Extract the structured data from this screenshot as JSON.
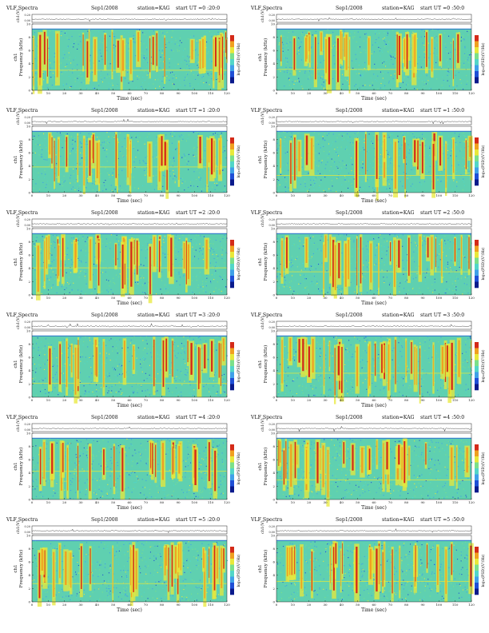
{
  "chart_data": [
    {
      "type": "heatmap",
      "title": "VLF Spectra",
      "date": "Sep1/2008",
      "station": "station=KAG",
      "start": "start  UT  =0 :20:0",
      "xlabel": "Time  (sec)",
      "ylabel": "Frequency  (kHz)",
      "ch_label": "ch1",
      "trace_label": "ch1(V)",
      "colorbar_label": "log₁₀(PSD)(V²/Hz)",
      "xlim": [
        0,
        120
      ],
      "ylim": [
        0,
        10
      ],
      "x_ticks": [
        "0",
        "10",
        "20",
        "30",
        "40",
        "50",
        "60",
        "70",
        "80",
        "90",
        "100",
        "110",
        "120"
      ],
      "y_ticks": [
        "0",
        "2",
        "4",
        "6",
        "8",
        "10"
      ],
      "trace_ticks": [
        "0.00",
        "0.20"
      ]
    },
    {
      "type": "heatmap",
      "title": "VLF Spectra",
      "date": "Sep1/2008",
      "station": "station=KAG",
      "start": "start  UT  =0 :50:0",
      "xlabel": "Time  (sec)",
      "ylabel": "Frequency  (kHz)",
      "ch_label": "ch1",
      "trace_label": "ch1(V)",
      "colorbar_label": "log₁₀(PSD)(V²/Hz)",
      "xlim": [
        0,
        120
      ],
      "ylim": [
        0,
        10
      ],
      "x_ticks": [
        "0",
        "10",
        "20",
        "30",
        "40",
        "50",
        "60",
        "70",
        "80",
        "90",
        "100",
        "110",
        "120"
      ],
      "y_ticks": [
        "0",
        "2",
        "4",
        "6",
        "8",
        "10"
      ],
      "trace_ticks": [
        "0.00",
        "0.20"
      ]
    },
    {
      "type": "heatmap",
      "title": "VLF Spectra",
      "date": "Sep1/2008",
      "station": "station=KAG",
      "start": "start  UT  =1 :20:0",
      "xlabel": "Time  (sec)",
      "ylabel": "Frequency  (kHz)",
      "ch_label": "ch1",
      "trace_label": "ch1(V)",
      "colorbar_label": "log₁₀(PSD)(V²/Hz)",
      "xlim": [
        0,
        120
      ],
      "ylim": [
        0,
        10
      ],
      "x_ticks": [
        "0",
        "10",
        "20",
        "30",
        "40",
        "50",
        "60",
        "70",
        "80",
        "90",
        "100",
        "110",
        "120"
      ],
      "y_ticks": [
        "0",
        "2",
        "4",
        "6",
        "8",
        "10"
      ],
      "trace_ticks": [
        "0.00",
        "0.20"
      ]
    },
    {
      "type": "heatmap",
      "title": "VLF Spectra",
      "date": "Sep1/2008",
      "station": "station=KAG",
      "start": "start  UT  =1 :50:0",
      "xlabel": "Time  (sec)",
      "ylabel": "Frequency  (kHz)",
      "ch_label": "ch1",
      "trace_label": "ch1(V)",
      "colorbar_label": "log₁₀(PSD)(V²/Hz)",
      "xlim": [
        0,
        120
      ],
      "ylim": [
        0,
        10
      ],
      "x_ticks": [
        "0",
        "10",
        "20",
        "30",
        "40",
        "50",
        "60",
        "70",
        "80",
        "90",
        "100",
        "110",
        "120"
      ],
      "y_ticks": [
        "0",
        "2",
        "4",
        "6",
        "8",
        "10"
      ],
      "trace_ticks": [
        "0.00",
        "0.20"
      ]
    },
    {
      "type": "heatmap",
      "title": "VLF Spectra",
      "date": "Sep1/2008",
      "station": "station=KAG",
      "start": "start  UT  =2 :20:0",
      "xlabel": "Time  (sec)",
      "ylabel": "Frequency  (kHz)",
      "ch_label": "ch1",
      "trace_label": "ch1(V)",
      "colorbar_label": "log₁₀(PSD)(V²/Hz)",
      "xlim": [
        0,
        120
      ],
      "ylim": [
        0,
        10
      ],
      "x_ticks": [
        "0",
        "10",
        "20",
        "30",
        "40",
        "50",
        "60",
        "70",
        "80",
        "90",
        "100",
        "110",
        "120"
      ],
      "y_ticks": [
        "0",
        "2",
        "4",
        "6",
        "8",
        "10"
      ],
      "trace_ticks": [
        "0.00",
        "0.20"
      ]
    },
    {
      "type": "heatmap",
      "title": "VLF Spectra",
      "date": "Sep1/2008",
      "station": "station=KAG",
      "start": "start  UT  =2 :50:0",
      "xlabel": "Time  (sec)",
      "ylabel": "Frequency  (kHz)",
      "ch_label": "ch1",
      "trace_label": "ch1(V)",
      "colorbar_label": "log₁₀(PSD)(V²/Hz)",
      "xlim": [
        0,
        120
      ],
      "ylim": [
        0,
        10
      ],
      "x_ticks": [
        "0",
        "10",
        "20",
        "30",
        "40",
        "50",
        "60",
        "70",
        "80",
        "90",
        "100",
        "110",
        "120"
      ],
      "y_ticks": [
        "0",
        "2",
        "4",
        "6",
        "8",
        "10"
      ],
      "trace_ticks": [
        "0.00",
        "0.20"
      ]
    },
    {
      "type": "heatmap",
      "title": "VLF Spectra",
      "date": "Sep1/2008",
      "station": "station=KAG",
      "start": "start  UT  =3 :20:0",
      "xlabel": "Time  (sec)",
      "ylabel": "Frequency  (kHz)",
      "ch_label": "ch1",
      "trace_label": "ch1(V)",
      "colorbar_label": "log₁₀(PSD)(V²/Hz)",
      "xlim": [
        0,
        120
      ],
      "ylim": [
        0,
        10
      ],
      "x_ticks": [
        "0",
        "10",
        "20",
        "30",
        "40",
        "50",
        "60",
        "70",
        "80",
        "90",
        "100",
        "110",
        "120"
      ],
      "y_ticks": [
        "0",
        "2",
        "4",
        "6",
        "8",
        "10"
      ],
      "trace_ticks": [
        "0.00",
        "0.20"
      ]
    },
    {
      "type": "heatmap",
      "title": "VLF Spectra",
      "date": "Sep1/2008",
      "station": "station=KAG",
      "start": "start  UT  =3 :50:0",
      "xlabel": "Time  (sec)",
      "ylabel": "Frequency  (kHz)",
      "ch_label": "ch1",
      "trace_label": "ch1(V)",
      "colorbar_label": "log₁₀(PSD)(V²/Hz)",
      "xlim": [
        0,
        120
      ],
      "ylim": [
        0,
        10
      ],
      "x_ticks": [
        "0",
        "10",
        "20",
        "30",
        "40",
        "50",
        "60",
        "70",
        "80",
        "90",
        "100",
        "110",
        "120"
      ],
      "y_ticks": [
        "0",
        "2",
        "4",
        "6",
        "8",
        "10"
      ],
      "trace_ticks": [
        "0.00",
        "0.20"
      ]
    },
    {
      "type": "heatmap",
      "title": "VLF Spectra",
      "date": "Sep1/2008",
      "station": "station=KAG",
      "start": "start  UT  =4 :20:0",
      "xlabel": "Time  (sec)",
      "ylabel": "Frequency  (kHz)",
      "ch_label": "ch1",
      "trace_label": "ch1(V)",
      "colorbar_label": "log₁₀(PSD)(V²/Hz)",
      "xlim": [
        0,
        120
      ],
      "ylim": [
        0,
        10
      ],
      "x_ticks": [
        "0",
        "10",
        "20",
        "30",
        "40",
        "50",
        "60",
        "70",
        "80",
        "90",
        "100",
        "110",
        "120"
      ],
      "y_ticks": [
        "0",
        "2",
        "4",
        "6",
        "8",
        "10"
      ],
      "trace_ticks": [
        "0.00",
        "0.20"
      ]
    },
    {
      "type": "heatmap",
      "title": "VLF Spectra",
      "date": "Sep1/2008",
      "station": "station=KAG",
      "start": "start  UT  =4 :50:0",
      "xlabel": "Time  (sec)",
      "ylabel": "Frequency  (kHz)",
      "ch_label": "ch1",
      "trace_label": "ch1(V)",
      "colorbar_label": "log₁₀(PSD)(V²/Hz)",
      "xlim": [
        0,
        120
      ],
      "ylim": [
        0,
        10
      ],
      "x_ticks": [
        "0",
        "10",
        "20",
        "30",
        "40",
        "50",
        "60",
        "70",
        "80",
        "90",
        "100",
        "110",
        "120"
      ],
      "y_ticks": [
        "0",
        "2",
        "4",
        "6",
        "8",
        "10"
      ],
      "trace_ticks": [
        "0.00",
        "0.20"
      ]
    },
    {
      "type": "heatmap",
      "title": "VLF Spectra",
      "date": "Sep1/2008",
      "station": "station=KAG",
      "start": "start  UT  =5 :20:0",
      "xlabel": "Time  (sec)",
      "ylabel": "Frequency  (kHz)",
      "ch_label": "ch1",
      "trace_label": "ch1(V)",
      "colorbar_label": "log₁₀(PSD)(V²/Hz)",
      "xlim": [
        0,
        120
      ],
      "ylim": [
        0,
        10
      ],
      "x_ticks": [
        "0",
        "10",
        "20",
        "30",
        "40",
        "50",
        "60",
        "70",
        "80",
        "90",
        "100",
        "110",
        "120"
      ],
      "y_ticks": [
        "0",
        "2",
        "4",
        "6",
        "8",
        "10"
      ],
      "trace_ticks": [
        "0.00",
        "0.20"
      ]
    },
    {
      "type": "heatmap",
      "title": "VLF Spectra",
      "date": "Sep1/2008",
      "station": "station=KAG",
      "start": "start  UT  =5 :50:0",
      "xlabel": "Time  (sec)",
      "ylabel": "Frequency  (kHz)",
      "ch_label": "ch1",
      "trace_label": "ch1(V)",
      "colorbar_label": "log₁₀(PSD)(V²/Hz)",
      "xlim": [
        0,
        120
      ],
      "ylim": [
        0,
        10
      ],
      "x_ticks": [
        "0",
        "10",
        "20",
        "30",
        "40",
        "50",
        "60",
        "70",
        "80",
        "90",
        "100",
        "110",
        "120"
      ],
      "y_ticks": [
        "0",
        "2",
        "4",
        "6",
        "8",
        "10"
      ],
      "trace_ticks": [
        "0.00",
        "0.20"
      ]
    }
  ],
  "colormap": [
    "#0a1a8c",
    "#1f4fd6",
    "#3fa0e8",
    "#52d6c8",
    "#7be08a",
    "#e8e83a",
    "#f0a020",
    "#d42a18"
  ],
  "background_color": "#5fd0b0"
}
